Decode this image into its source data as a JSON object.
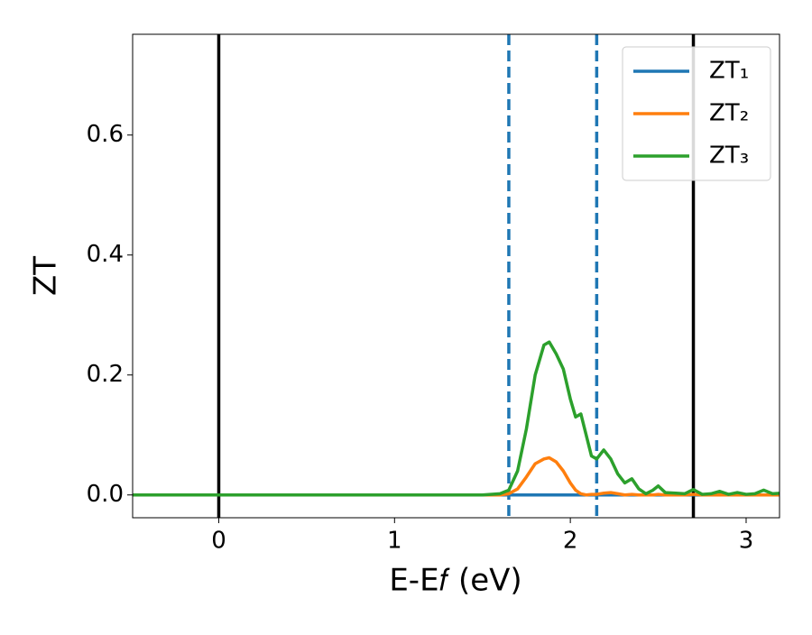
{
  "chart_data": {
    "type": "line",
    "xlabel": "E-E𝑓 (eV)",
    "ylabel": "ZT",
    "x": [
      -0.5,
      0,
      0.5,
      1.0,
      1.5,
      1.6,
      1.65,
      1.7,
      1.75,
      1.8,
      1.85,
      1.88,
      1.92,
      1.96,
      2.0,
      2.03,
      2.06,
      2.09,
      2.12,
      2.15,
      2.19,
      2.23,
      2.27,
      2.31,
      2.35,
      2.39,
      2.43,
      2.47,
      2.5,
      2.54,
      2.6,
      2.65,
      2.7,
      2.75,
      2.8,
      2.85,
      2.9,
      2.95,
      3.0,
      3.05,
      3.1,
      3.15,
      3.2
    ],
    "series": [
      {
        "name": "ZT₁",
        "color": "#1f77b4",
        "values": [
          0,
          0,
          0,
          0,
          0,
          0,
          0,
          0,
          0,
          0,
          0,
          0,
          0,
          0,
          0,
          0,
          0,
          0,
          0,
          0,
          0,
          0,
          0,
          0,
          0,
          0,
          0,
          0,
          0,
          0,
          0,
          0,
          0,
          0,
          0,
          0,
          0,
          0,
          0,
          0,
          0,
          0,
          0
        ]
      },
      {
        "name": "ZT₂",
        "color": "#ff7f0e",
        "values": [
          0,
          0,
          0,
          0,
          0,
          0,
          0.002,
          0.01,
          0.03,
          0.052,
          0.06,
          0.062,
          0.055,
          0.04,
          0.02,
          0.008,
          0.002,
          0,
          0.001,
          0.001,
          0.003,
          0.004,
          0.002,
          0,
          0.001,
          0,
          0,
          0,
          0.001,
          0,
          0,
          0,
          0.001,
          0,
          0,
          0,
          0,
          0,
          0,
          0,
          0,
          0,
          0
        ]
      },
      {
        "name": "ZT₃",
        "color": "#2ca02c",
        "values": [
          0,
          0,
          0,
          0,
          0,
          0.002,
          0.008,
          0.04,
          0.11,
          0.2,
          0.25,
          0.255,
          0.235,
          0.21,
          0.16,
          0.13,
          0.135,
          0.1,
          0.065,
          0.06,
          0.075,
          0.06,
          0.035,
          0.02,
          0.027,
          0.01,
          0.002,
          0.008,
          0.015,
          0.004,
          0.003,
          0.002,
          0.009,
          0.001,
          0.002,
          0.006,
          0.001,
          0.004,
          0.001,
          0.002,
          0.008,
          0.002,
          0.003
        ]
      }
    ],
    "vlines": [
      {
        "x": 0,
        "color": "#000000",
        "style": "solid"
      },
      {
        "x": 1.65,
        "color": "#1f77b4",
        "style": "dashed"
      },
      {
        "x": 2.15,
        "color": "#1f77b4",
        "style": "dashed"
      },
      {
        "x": 2.7,
        "color": "#000000",
        "style": "solid"
      }
    ],
    "xlim": [
      -0.49,
      3.19
    ],
    "ylim": [
      -0.038,
      0.768
    ],
    "xticks": [
      0,
      1,
      2,
      3
    ],
    "yticks": [
      {
        "value": 0,
        "label": "0.0"
      },
      0.2,
      0.4,
      0.6
    ],
    "legend": "upper right"
  }
}
